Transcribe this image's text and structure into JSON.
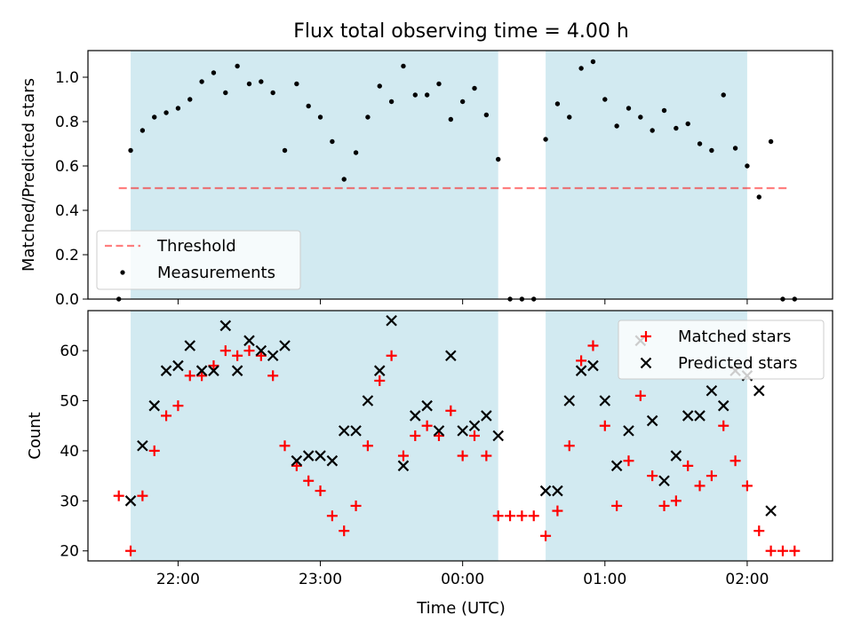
{
  "colors": {
    "shade": "#add8e6",
    "threshold": "#ff0000",
    "measurement": "#000000",
    "matched": "#ff0000",
    "predicted": "#000000"
  },
  "chart_data": [
    {
      "type": "scatter",
      "title": "Flux total observing time = 4.00 h",
      "xlabel": "",
      "ylabel": "Matched/Predicted stars",
      "xlim": [
        "21:22",
        "02:36"
      ],
      "ylim": [
        0,
        1.12
      ],
      "yticks": [
        0.0,
        0.2,
        0.4,
        0.6,
        0.8,
        1.0
      ],
      "ytick_labels": [
        "0.0",
        "0.2",
        "0.4",
        "0.6",
        "0.8",
        "1.0"
      ],
      "xticks": [
        "22:00",
        "23:00",
        "00:00",
        "01:00",
        "02:00"
      ],
      "shaded_intervals": [
        [
          "21:40",
          "00:15"
        ],
        [
          "00:35",
          "02:00"
        ]
      ],
      "legend_position": "lower-left",
      "threshold": {
        "name": "Threshold",
        "value": 0.5,
        "x_range": [
          "21:35",
          "02:18"
        ]
      },
      "series": [
        {
          "name": "Measurements",
          "x": [
            "21:35",
            "21:40",
            "21:45",
            "21:50",
            "21:55",
            "22:00",
            "22:05",
            "22:10",
            "22:15",
            "22:20",
            "22:25",
            "22:30",
            "22:35",
            "22:40",
            "22:45",
            "22:50",
            "22:55",
            "23:00",
            "23:05",
            "23:10",
            "23:15",
            "23:20",
            "23:25",
            "23:30",
            "23:35",
            "23:40",
            "23:45",
            "23:50",
            "23:55",
            "00:00",
            "00:05",
            "00:10",
            "00:15",
            "00:20",
            "00:25",
            "00:30",
            "00:35",
            "00:40",
            "00:45",
            "00:50",
            "00:55",
            "01:00",
            "01:05",
            "01:10",
            "01:15",
            "01:20",
            "01:25",
            "01:30",
            "01:35",
            "01:40",
            "01:45",
            "01:50",
            "01:55",
            "02:00",
            "02:05",
            "02:10",
            "02:15",
            "02:20"
          ],
          "y": [
            0.0,
            0.67,
            0.76,
            0.82,
            0.84,
            0.86,
            0.9,
            0.98,
            1.02,
            0.93,
            1.05,
            0.97,
            0.98,
            0.93,
            0.67,
            0.97,
            0.87,
            0.82,
            0.71,
            0.54,
            0.66,
            0.82,
            0.96,
            0.89,
            1.05,
            0.92,
            0.92,
            0.97,
            0.81,
            0.89,
            0.95,
            0.83,
            0.63,
            0.0,
            0.0,
            0.0,
            0.72,
            0.88,
            0.82,
            1.04,
            1.07,
            0.9,
            0.78,
            0.86,
            0.82,
            0.76,
            0.85,
            0.77,
            0.79,
            0.7,
            0.67,
            0.92,
            0.68,
            0.6,
            0.46,
            0.71,
            0.0,
            0.0
          ]
        }
      ]
    },
    {
      "type": "scatter",
      "title": "",
      "xlabel": "Time (UTC)",
      "ylabel": "Count",
      "xlim": [
        "21:22",
        "02:36"
      ],
      "ylim": [
        18,
        68
      ],
      "yticks": [
        20,
        30,
        40,
        50,
        60
      ],
      "ytick_labels": [
        "20",
        "30",
        "40",
        "50",
        "60"
      ],
      "xticks": [
        "22:00",
        "23:00",
        "00:00",
        "01:00",
        "02:00"
      ],
      "xtick_labels": [
        "22:00",
        "23:00",
        "00:00",
        "01:00",
        "02:00"
      ],
      "shaded_intervals": [
        [
          "21:40",
          "00:15"
        ],
        [
          "00:35",
          "02:00"
        ]
      ],
      "legend_position": "upper-right",
      "series": [
        {
          "name": "Matched stars",
          "marker": "plus",
          "x": [
            "21:35",
            "21:40",
            "21:45",
            "21:50",
            "21:55",
            "22:00",
            "22:05",
            "22:10",
            "22:15",
            "22:20",
            "22:25",
            "22:30",
            "22:35",
            "22:40",
            "22:45",
            "22:50",
            "22:55",
            "23:00",
            "23:05",
            "23:10",
            "23:15",
            "23:20",
            "23:25",
            "23:30",
            "23:35",
            "23:40",
            "23:45",
            "23:50",
            "23:55",
            "00:00",
            "00:05",
            "00:10",
            "00:15",
            "00:20",
            "00:25",
            "00:30",
            "00:35",
            "00:40",
            "00:45",
            "00:50",
            "00:55",
            "01:00",
            "01:05",
            "01:10",
            "01:15",
            "01:20",
            "01:25",
            "01:30",
            "01:35",
            "01:40",
            "01:45",
            "01:50",
            "01:55",
            "02:00",
            "02:05",
            "02:10",
            "02:15",
            "02:20"
          ],
          "y": [
            31,
            20,
            31,
            40,
            47,
            49,
            55,
            55,
            57,
            60,
            59,
            60,
            59,
            55,
            41,
            37,
            34,
            32,
            27,
            24,
            29,
            41,
            54,
            59,
            39,
            43,
            45,
            43,
            48,
            39,
            43,
            39,
            27,
            27,
            27,
            27,
            23,
            28,
            41,
            58,
            61,
            45,
            29,
            38,
            51,
            35,
            29,
            30,
            37,
            33,
            35,
            45,
            38,
            33,
            24,
            20,
            20,
            20
          ]
        },
        {
          "name": "Predicted stars",
          "marker": "x",
          "x": [
            "21:40",
            "21:45",
            "21:50",
            "21:55",
            "22:00",
            "22:05",
            "22:10",
            "22:15",
            "22:20",
            "22:25",
            "22:30",
            "22:35",
            "22:40",
            "22:45",
            "22:50",
            "22:55",
            "23:00",
            "23:05",
            "23:10",
            "23:15",
            "23:20",
            "23:25",
            "23:30",
            "23:35",
            "23:40",
            "23:45",
            "23:50",
            "23:55",
            "00:00",
            "00:05",
            "00:10",
            "00:15",
            "00:35",
            "00:40",
            "00:45",
            "00:50",
            "00:55",
            "01:00",
            "01:05",
            "01:10",
            "01:15",
            "01:20",
            "01:25",
            "01:30",
            "01:35",
            "01:40",
            "01:45",
            "01:50",
            "01:55",
            "02:00",
            "02:05",
            "02:10"
          ],
          "y": [
            30,
            41,
            49,
            56,
            57,
            61,
            56,
            56,
            65,
            56,
            62,
            60,
            59,
            61,
            38,
            39,
            39,
            38,
            44,
            44,
            50,
            56,
            66,
            37,
            47,
            49,
            44,
            59,
            44,
            45,
            47,
            43,
            32,
            32,
            50,
            56,
            57,
            50,
            37,
            44,
            62,
            46,
            34,
            39,
            47,
            47,
            52,
            49,
            56,
            55,
            52,
            28
          ]
        }
      ]
    }
  ]
}
